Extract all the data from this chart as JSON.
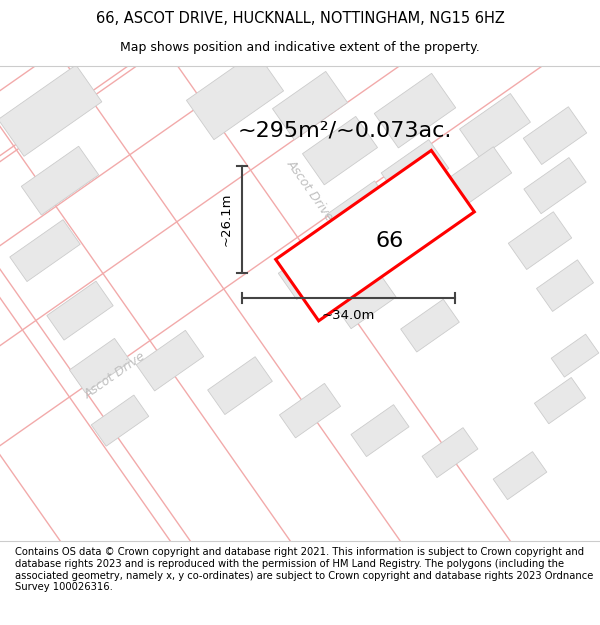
{
  "title_line1": "66, ASCOT DRIVE, HUCKNALL, NOTTINGHAM, NG15 6HZ",
  "title_line2": "Map shows position and indicative extent of the property.",
  "footer_text": "Contains OS data © Crown copyright and database right 2021. This information is subject to Crown copyright and database rights 2023 and is reproduced with the permission of HM Land Registry. The polygons (including the associated geometry, namely x, y co-ordinates) are subject to Crown copyright and database rights 2023 Ordnance Survey 100026316.",
  "area_label": "~295m²/~0.073ac.",
  "dim_width": "~34.0m",
  "dim_height": "~26.1m",
  "number_label": "66",
  "map_bg_color": "#ffffff",
  "road_color": "#f2aaaa",
  "road_lw": 1.0,
  "building_fill": "#e8e8e8",
  "building_edge": "#cccccc",
  "property_color": "#ff0000",
  "property_fill": "#ffffff",
  "street_label_color": "#c0c0c0",
  "dim_color": "#444444",
  "title_fontsize": 10.5,
  "subtitle_fontsize": 9,
  "footer_fontsize": 7.2,
  "area_fontsize": 16,
  "number_fontsize": 16,
  "dim_fontsize": 9.5,
  "street_fontsize": 9
}
